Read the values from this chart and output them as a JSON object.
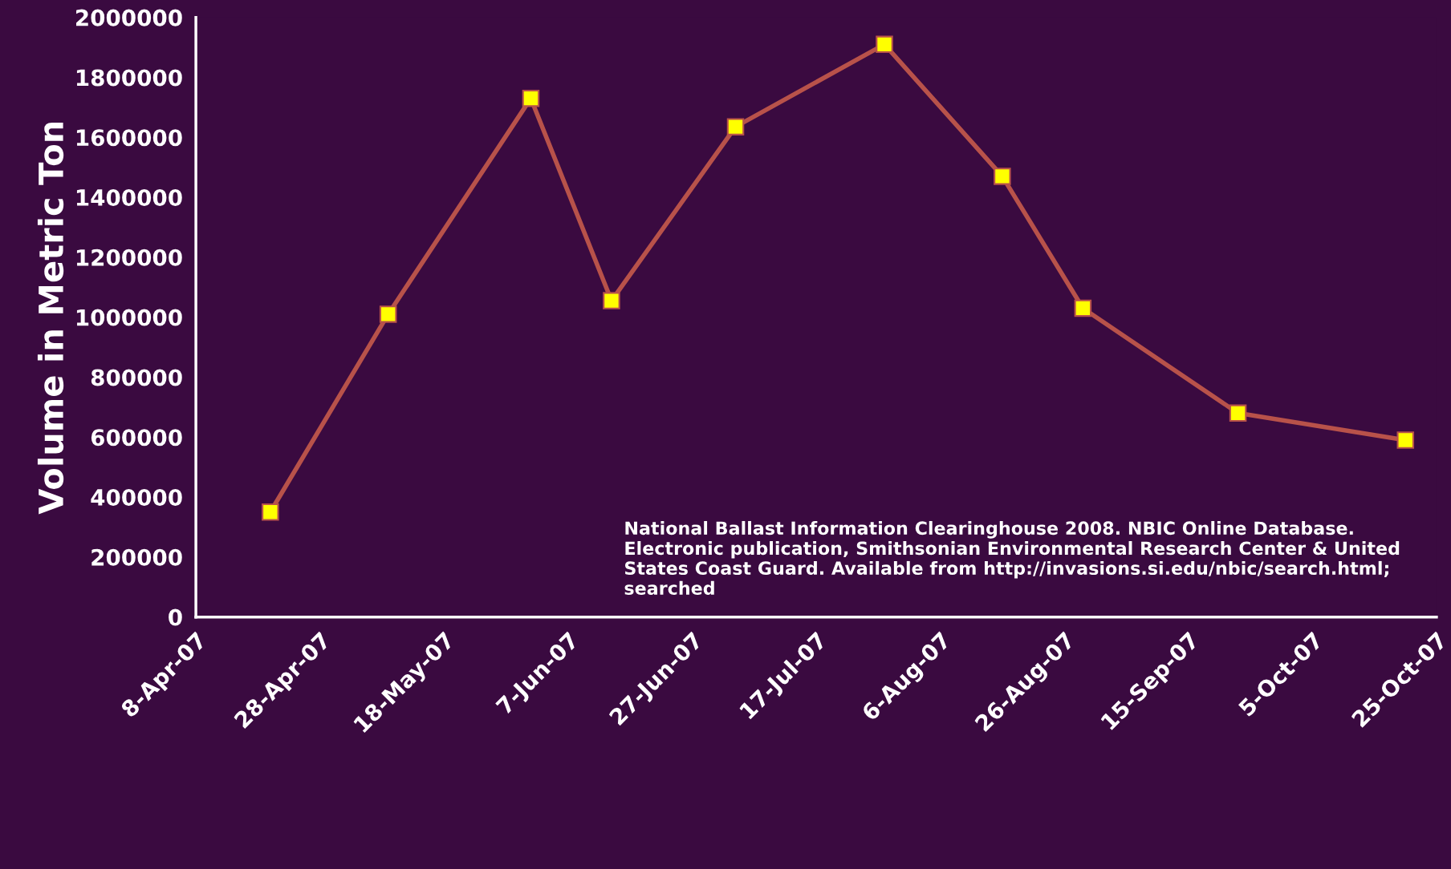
{
  "chart_data": {
    "type": "line",
    "ylabel": "Volume in Metric Ton",
    "x": [
      "2007-04-20",
      "2007-05-09",
      "2007-06-01",
      "2007-06-14",
      "2007-07-04",
      "2007-07-28",
      "2007-08-16",
      "2007-08-29",
      "2007-09-23",
      "2007-10-20"
    ],
    "series": [
      {
        "color": "#b8524a",
        "values": [
          350000,
          1010000,
          1730000,
          1055000,
          1635000,
          1910000,
          1470000,
          1030000,
          680000,
          590000
        ]
      }
    ],
    "marker": "square",
    "line_style": "solid",
    "grid": false,
    "legend": false,
    "xlim": [
      "2007-04-08",
      "2007-10-25"
    ],
    "xticks": [
      {
        "value": "2007-04-08",
        "label": "8-Apr-07"
      },
      {
        "value": "2007-04-28",
        "label": "28-Apr-07"
      },
      {
        "value": "2007-05-18",
        "label": "18-May-07"
      },
      {
        "value": "2007-06-07",
        "label": "7-Jun-07"
      },
      {
        "value": "2007-06-27",
        "label": "27-Jun-07"
      },
      {
        "value": "2007-07-17",
        "label": "17-Jul-07"
      },
      {
        "value": "2007-08-06",
        "label": "6-Aug-07"
      },
      {
        "value": "2007-08-26",
        "label": "26-Aug-07"
      },
      {
        "value": "2007-09-15",
        "label": "15-Sep-07"
      },
      {
        "value": "2007-10-05",
        "label": "5-Oct-07"
      },
      {
        "value": "2007-10-25",
        "label": "25-Oct-07"
      }
    ],
    "ylim": [
      0,
      2000000
    ],
    "yticks": [
      0,
      200000,
      400000,
      600000,
      800000,
      1000000,
      1200000,
      1400000,
      1600000,
      1800000,
      2000000
    ],
    "annotations": [
      "National Ballast Information Clearinghouse 2008. NBIC Online Database. Electronic publication, Smithsonian Environmental Research Center & United States Coast Guard. Available from http://invasions.si.edu/nbic/search.html; searched"
    ]
  }
}
